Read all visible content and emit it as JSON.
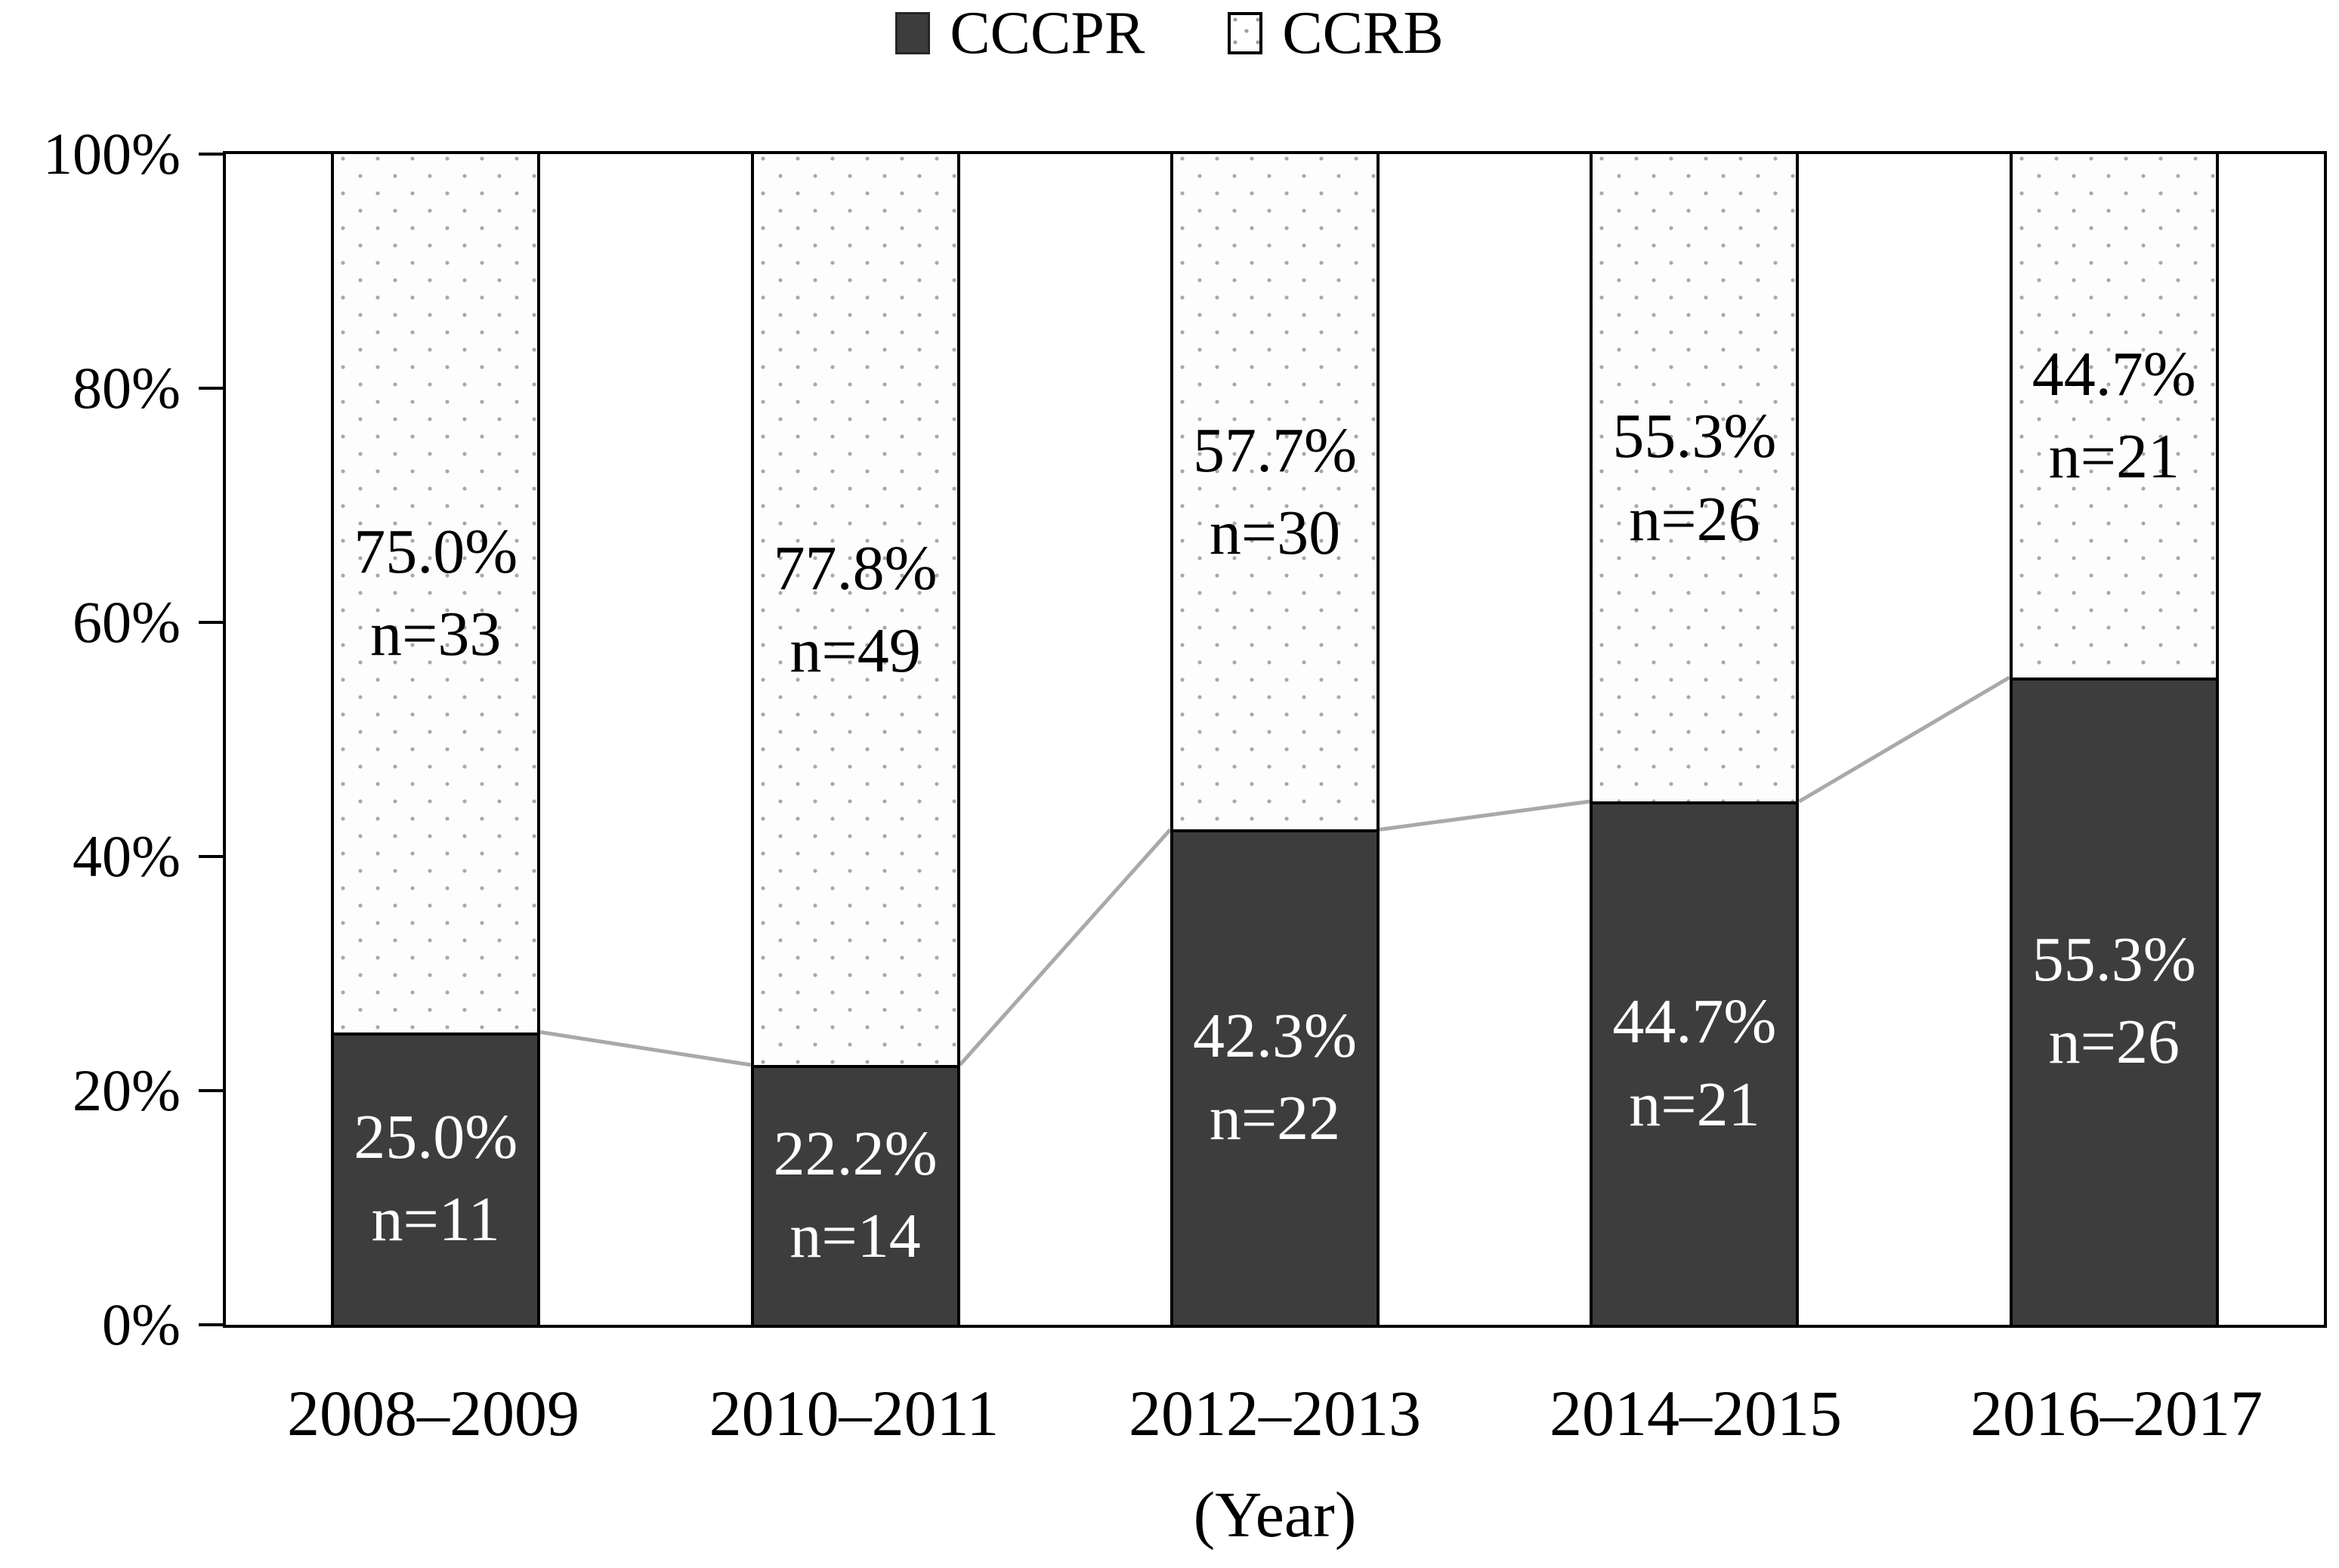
{
  "legend": {
    "items": [
      {
        "label": "CCCPR",
        "swatch": "dark"
      },
      {
        "label": "CCRB",
        "swatch": "dotted"
      }
    ]
  },
  "y_axis": {
    "ticks": [
      "0%",
      "20%",
      "40%",
      "60%",
      "80%",
      "100%"
    ]
  },
  "x_axis": {
    "title": "(Year)"
  },
  "colors": {
    "cccpr_fill": "#3d3d3d",
    "dot_gray": "#a8a8a8",
    "connector_gray": "#a9a9a9",
    "axis_black": "#000000"
  },
  "chart_data": {
    "type": "bar",
    "stacked": true,
    "percent_stacked": true,
    "grid": false,
    "legend_position": "top-center",
    "ylim": [
      0,
      100
    ],
    "xlabel": "(Year)",
    "ylabel": "",
    "categories": [
      "2008–2009",
      "2010–2011",
      "2012–2013",
      "2014–2015",
      "2016–2017"
    ],
    "series": [
      {
        "name": "CCCPR",
        "values": [
          25.0,
          22.2,
          42.3,
          44.7,
          55.3
        ],
        "counts": [
          11,
          14,
          22,
          21,
          26
        ],
        "labels": [
          [
            "25.0%",
            "n=11"
          ],
          [
            "22.2%",
            "n=14"
          ],
          [
            "42.3%",
            "n=22"
          ],
          [
            "44.7%",
            "n=21"
          ],
          [
            "55.3%",
            "n=26"
          ]
        ]
      },
      {
        "name": "CCRB",
        "values": [
          75.0,
          77.8,
          57.7,
          55.3,
          44.7
        ],
        "counts": [
          33,
          49,
          30,
          26,
          21
        ],
        "labels": [
          [
            "75.0%",
            "n=33"
          ],
          [
            "77.8%",
            "n=49"
          ],
          [
            "57.7%",
            "n=30"
          ],
          [
            "55.3%",
            "n=26"
          ],
          [
            "44.7%",
            "n=21"
          ]
        ]
      }
    ],
    "annotations": "gray line connects tops of CCCPR segments between adjacent bars"
  }
}
